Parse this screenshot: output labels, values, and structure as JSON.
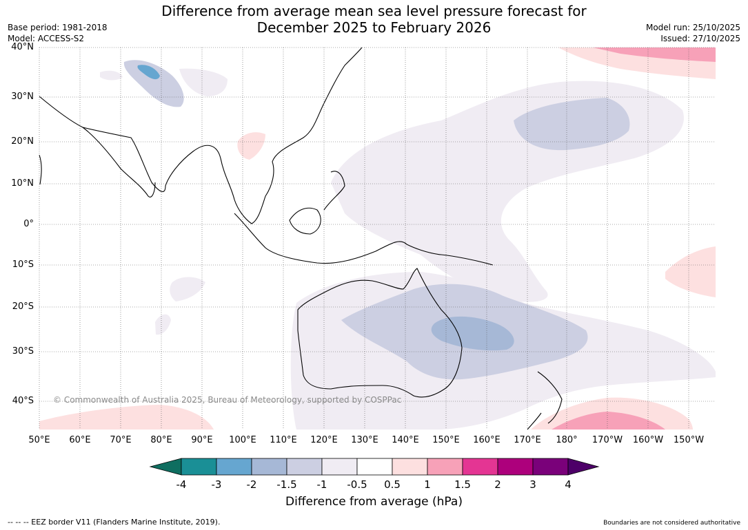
{
  "header": {
    "title_line1": "Difference from average mean sea level pressure forecast for",
    "title_line2": "December 2025 to February 2026",
    "base_period": "Base period: 1981-2018",
    "model": "Model: ACCESS-S2",
    "model_run": "Model run: 25/10/2025",
    "issued": "Issued: 27/10/2025"
  },
  "map": {
    "latitude_labels": [
      "40°N",
      "30°N",
      "20°N",
      "10°N",
      "0°",
      "10°S",
      "20°S",
      "30°S",
      "40°S"
    ],
    "longitude_labels": [
      "50°E",
      "60°E",
      "70°E",
      "80°E",
      "90°E",
      "100°E",
      "110°E",
      "120°E",
      "130°E",
      "140°E",
      "150°E",
      "160°E",
      "170°E",
      "180°",
      "170°W",
      "160°W",
      "150°W"
    ],
    "copyright": "© Commonwealth of Australia 2025, Bureau of Meteorology, supported by COSPPac"
  },
  "colorbar": {
    "ticks": [
      "-4",
      "-3",
      "-2",
      "-1.5",
      "-1",
      "-0.5",
      "0.5",
      "1",
      "1.5",
      "2",
      "3",
      "4"
    ],
    "colors": [
      "#0f6e60",
      "#1a8f96",
      "#66a6d0",
      "#a6b8d6",
      "#cccfe2",
      "#f0ecf3",
      "#ffffff",
      "#fde0e0",
      "#f7a1b8",
      "#e43593",
      "#ad007c",
      "#7a017a",
      "#4d0068"
    ],
    "title": "Difference from average (hPa)"
  },
  "footer": {
    "eez_note": "--  --  -- EEZ border V11 (Flanders Marine Institute, 2019).",
    "disclaimer": "Boundaries are not considered authoritative"
  }
}
